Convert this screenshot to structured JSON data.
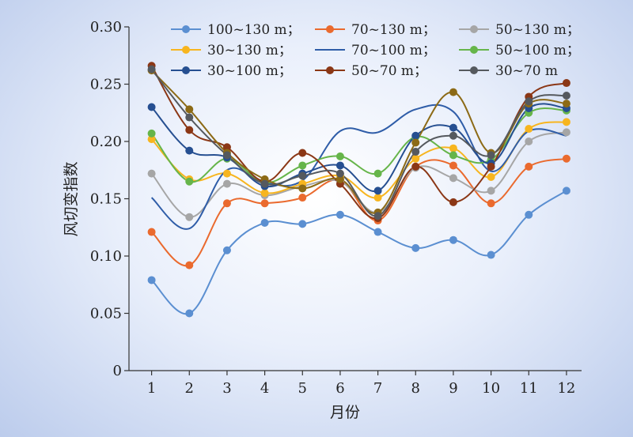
{
  "chart_data": {
    "type": "line",
    "xlabel": "月份",
    "ylabel": "风切变指数",
    "xlim": [
      0.4,
      12.4
    ],
    "ylim": [
      0,
      0.3
    ],
    "x": [
      1,
      2,
      3,
      4,
      5,
      6,
      7,
      8,
      9,
      10,
      11,
      12
    ],
    "yticks": [
      "0",
      "0.05",
      "0.10",
      "0.15",
      "0.20",
      "0.25",
      "0.30"
    ],
    "ytick_values": [
      0,
      0.05,
      0.1,
      0.15,
      0.2,
      0.25,
      0.3
    ],
    "grid": false,
    "legend_position": "top",
    "series": [
      {
        "name": "100~130 m；",
        "color": "#5b8fd1",
        "markers": true,
        "values": [
          0.079,
          0.05,
          0.105,
          0.129,
          0.128,
          0.136,
          0.121,
          0.107,
          0.114,
          0.101,
          0.136,
          0.157
        ]
      },
      {
        "name": "70~130 m；",
        "color": "#ea6a2e",
        "markers": true,
        "values": [
          0.121,
          0.092,
          0.146,
          0.146,
          0.151,
          0.166,
          0.131,
          0.178,
          0.179,
          0.146,
          0.178,
          0.185
        ]
      },
      {
        "name": "50~130 m；",
        "color": "#a6a6a6",
        "markers": true,
        "values": [
          0.172,
          0.134,
          0.163,
          0.153,
          0.161,
          0.165,
          0.138,
          0.177,
          0.168,
          0.157,
          0.2,
          0.208
        ]
      },
      {
        "name": "30~130 m；",
        "color": "#f7b51f",
        "markers": true,
        "values": [
          0.202,
          0.167,
          0.172,
          0.155,
          0.163,
          0.17,
          0.151,
          0.185,
          0.194,
          0.169,
          0.211,
          0.217
        ]
      },
      {
        "name": "70~100 m；",
        "color": "#2f5da8",
        "markers": false,
        "values": [
          0.151,
          0.124,
          0.175,
          0.164,
          0.166,
          0.209,
          0.208,
          0.228,
          0.226,
          0.174,
          0.209,
          0.205
        ]
      },
      {
        "name": "50~100 m；",
        "color": "#66b54a",
        "markers": true,
        "values": [
          0.207,
          0.165,
          0.185,
          0.164,
          0.179,
          0.187,
          0.172,
          0.204,
          0.188,
          0.184,
          0.225,
          0.227
        ]
      },
      {
        "name": "30~100 m；",
        "color": "#264f91",
        "markers": true,
        "values": [
          0.23,
          0.192,
          0.186,
          0.161,
          0.172,
          0.179,
          0.157,
          0.205,
          0.212,
          0.181,
          0.229,
          0.229
        ]
      },
      {
        "name": "50~70 m；",
        "color": "#8b3716",
        "markers": true,
        "values": [
          0.266,
          0.21,
          0.195,
          0.165,
          0.19,
          0.163,
          0.133,
          0.178,
          0.147,
          0.178,
          0.239,
          0.251
        ]
      },
      {
        "name": "",
        "color": "#8c6a16",
        "markers": true,
        "values": [
          0.262,
          0.228,
          0.19,
          0.167,
          0.159,
          0.167,
          0.138,
          0.199,
          0.243,
          0.19,
          0.233,
          0.233
        ]
      },
      {
        "name": "30~70 m",
        "color": "#55595e",
        "markers": true,
        "values": [
          0.263,
          0.221,
          0.188,
          0.163,
          0.17,
          0.172,
          0.135,
          0.191,
          0.205,
          0.188,
          0.235,
          0.24
        ]
      }
    ]
  }
}
